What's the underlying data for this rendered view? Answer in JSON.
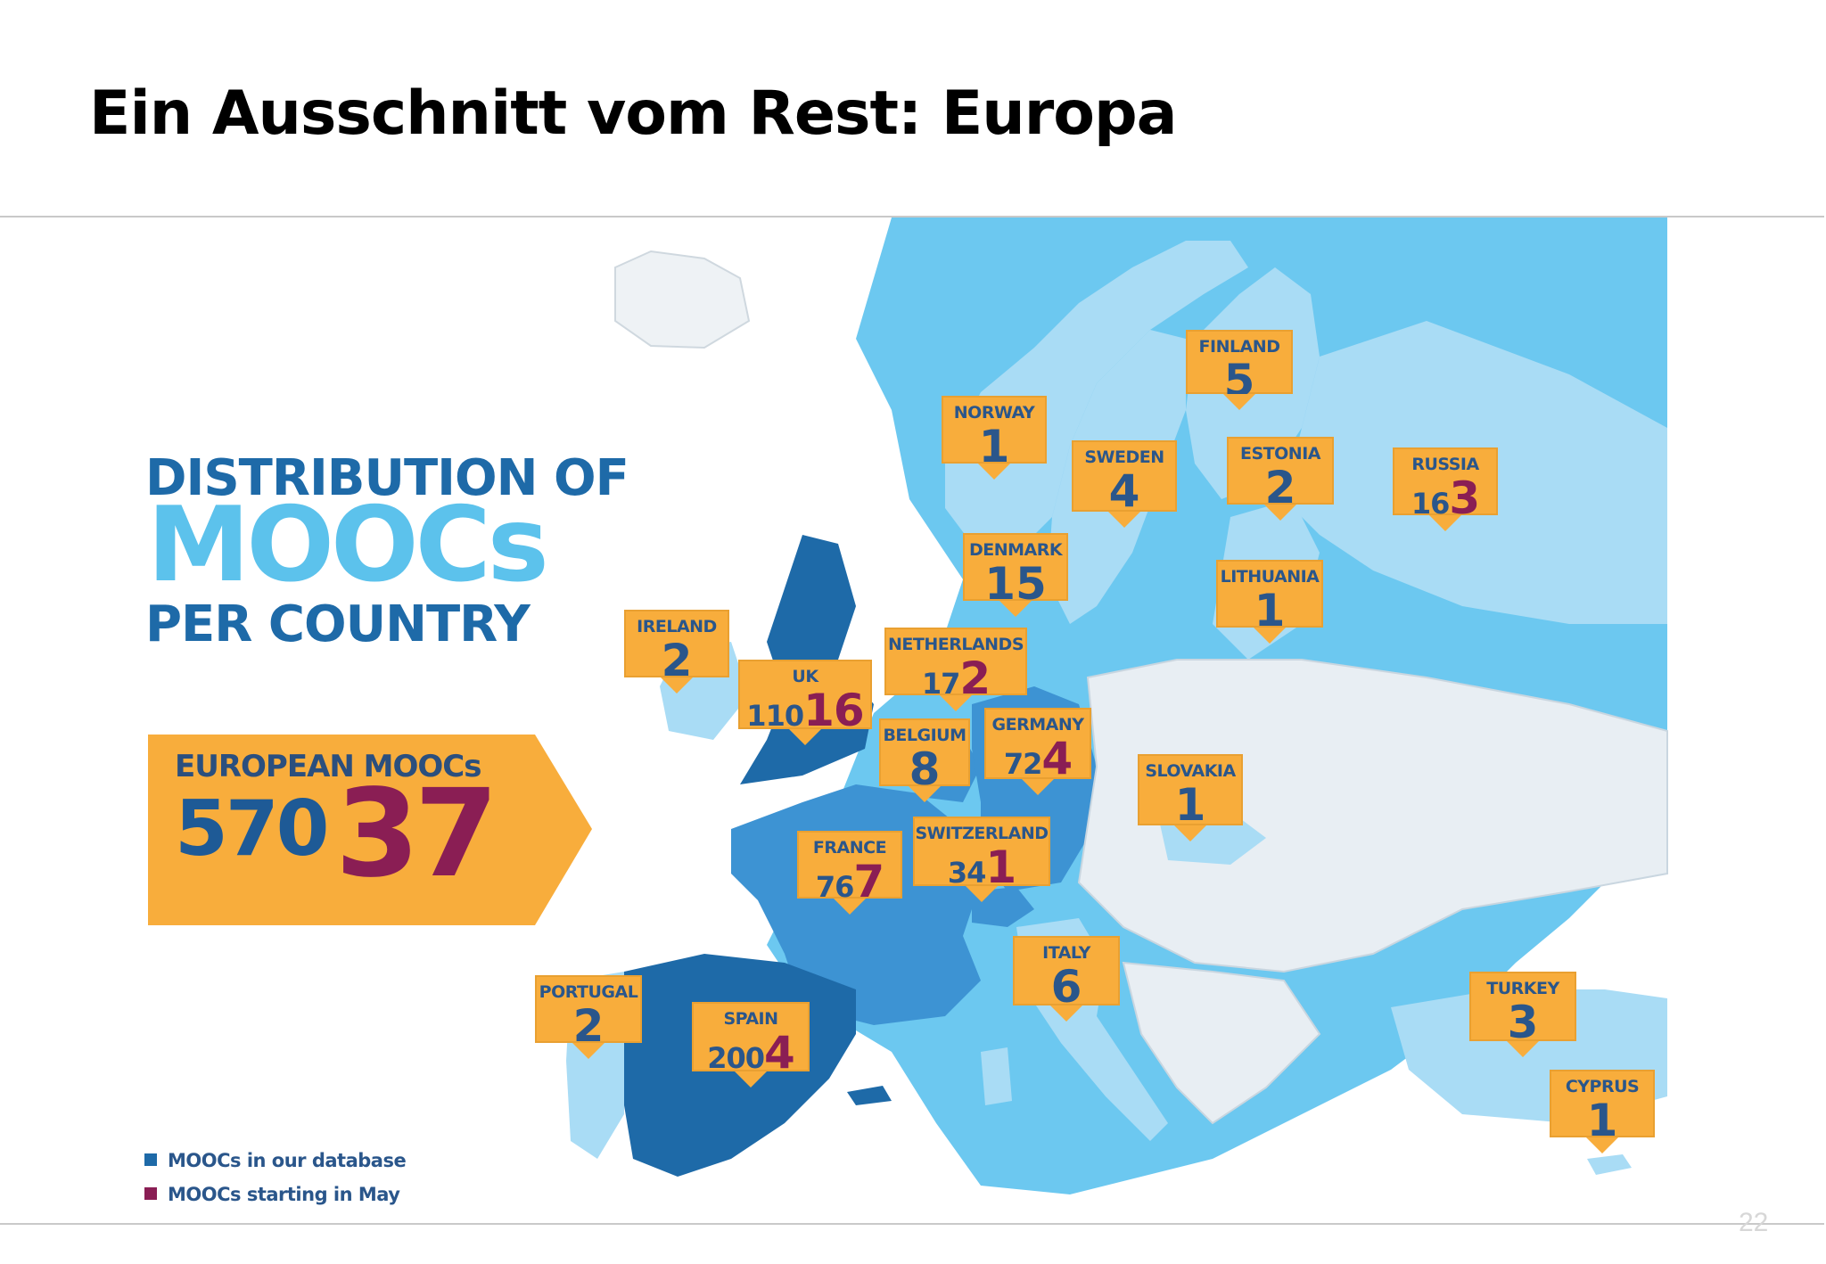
{
  "slide": {
    "title": "Ein Ausschnitt vom Rest: Europa",
    "page_number": "22"
  },
  "infographic": {
    "headline_line1": "DISTRIBUTION OF",
    "headline_line2": "MOOCs",
    "headline_line3": "PER COUNTRY",
    "total": {
      "label": "EUROPEAN MOOCs",
      "in_database": "570",
      "starting_in_may": "37"
    },
    "legend": [
      {
        "label": "MOOCs in our database",
        "color": "#1e6aa8"
      },
      {
        "label": "MOOCs starting in May",
        "color": "#8a1e54"
      }
    ],
    "countries": [
      {
        "name": "FINLAND",
        "value": "5"
      },
      {
        "name": "NORWAY",
        "value": "1"
      },
      {
        "name": "SWEDEN",
        "value": "4"
      },
      {
        "name": "ESTONIA",
        "value": "2"
      },
      {
        "name": "RUSSIA",
        "db": "16",
        "may": "3"
      },
      {
        "name": "DENMARK",
        "value": "15"
      },
      {
        "name": "LITHUANIA",
        "value": "1"
      },
      {
        "name": "IRELAND",
        "value": "2"
      },
      {
        "name": "NETHERLANDS",
        "db": "17",
        "may": "2"
      },
      {
        "name": "UK",
        "db": "110",
        "may": "16"
      },
      {
        "name": "BELGIUM",
        "value": "8"
      },
      {
        "name": "GERMANY",
        "db": "72",
        "may": "4"
      },
      {
        "name": "SLOVAKIA",
        "value": "1"
      },
      {
        "name": "FRANCE",
        "db": "76",
        "may": "7"
      },
      {
        "name": "SWITZERLAND",
        "db": "34",
        "may": "1"
      },
      {
        "name": "ITALY",
        "value": "6"
      },
      {
        "name": "PORTUGAL",
        "value": "2"
      },
      {
        "name": "SPAIN",
        "db": "200",
        "may": "4"
      },
      {
        "name": "TURKEY",
        "value": "3"
      },
      {
        "name": "CYPRUS",
        "value": "1"
      }
    ]
  },
  "colors": {
    "sea": "#6cc8f0",
    "dark_country": "#1e6aa8",
    "mid_country": "#3d93d3",
    "light_country": "#a9dcf5",
    "nodata_country": "#e8eef3",
    "tag": "#f8ad3c",
    "may_value": "#8a1e54"
  }
}
